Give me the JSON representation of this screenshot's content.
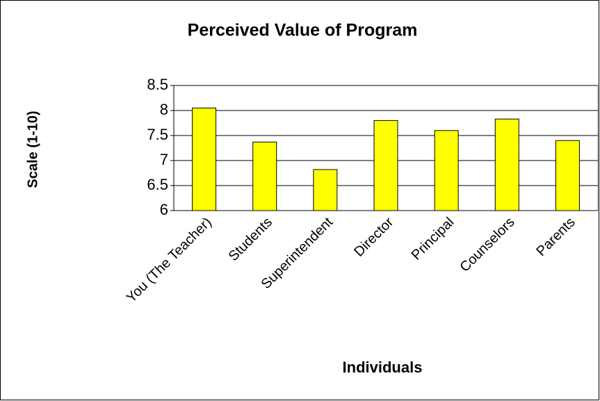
{
  "chart_data": {
    "type": "bar",
    "title": "Perceived Value of Program",
    "x_label": "Individuals",
    "y_label": "Scale (1-10)",
    "categories": [
      "You (The Teacher)",
      "Students",
      "Superintendent",
      "Director",
      "Principal",
      "Counselors",
      "Parents"
    ],
    "values": [
      8.05,
      7.37,
      6.82,
      7.8,
      7.6,
      7.83,
      7.4
    ],
    "color": "#ffff00",
    "ylim": [
      6,
      8.5
    ],
    "yticks": [
      6,
      6.5,
      7,
      7.5,
      8,
      8.5
    ],
    "grid": true
  }
}
